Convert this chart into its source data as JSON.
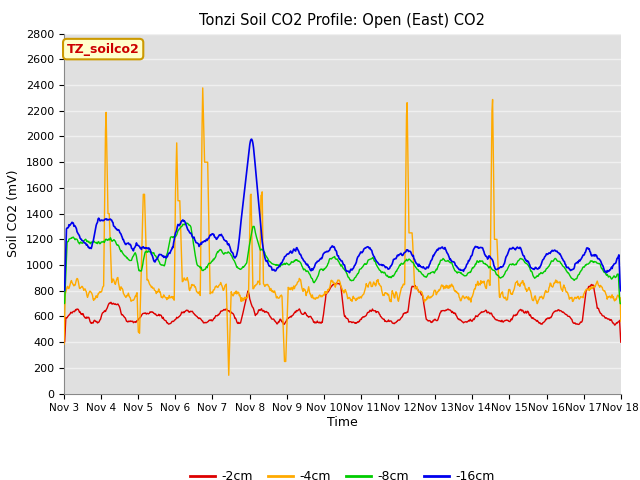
{
  "title": "Tonzi Soil CO2 Profile: Open (East) CO2",
  "xlabel": "Time",
  "ylabel": "Soil CO2 (mV)",
  "ylim": [
    0,
    2800
  ],
  "yticks": [
    0,
    200,
    400,
    600,
    800,
    1000,
    1200,
    1400,
    1600,
    1800,
    2000,
    2200,
    2400,
    2600,
    2800
  ],
  "xtick_labels": [
    "Nov 3",
    "Nov 4",
    "Nov 5",
    "Nov 6",
    "Nov 7",
    "Nov 8",
    "Nov 9",
    "Nov 10",
    "Nov 11",
    "Nov 12",
    "Nov 13",
    "Nov 14",
    "Nov 15",
    "Nov 16",
    "Nov 17",
    "Nov 18"
  ],
  "legend_labels": [
    "-2cm",
    "-4cm",
    "-8cm",
    "-16cm"
  ],
  "legend_colors": [
    "#dd0000",
    "#ffaa00",
    "#00cc00",
    "#0000ee"
  ],
  "fig_bg_color": "#ffffff",
  "plot_bg_color": "#e0e0e0",
  "grid_color": "#f0f0f0",
  "annotation_text": "TZ_soilco2",
  "annotation_bg": "#ffffcc",
  "annotation_border": "#cc9900"
}
